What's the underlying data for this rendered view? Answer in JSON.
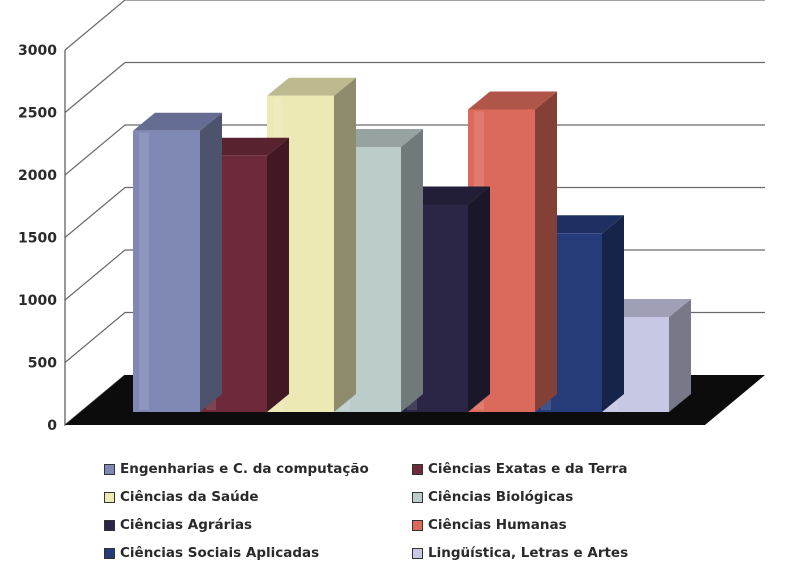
{
  "chart_data": {
    "type": "bar",
    "three_d": true,
    "title": "",
    "xlabel": "",
    "ylabel": "",
    "ylim": [
      0,
      3000
    ],
    "yticks": [
      0,
      500,
      1000,
      1500,
      2000,
      2500,
      3000
    ],
    "ytick_labels": [
      "0",
      "500",
      "1000",
      "1500",
      "2000",
      "2500",
      "3000"
    ],
    "grid": true,
    "legend_position": "bottom",
    "series": [
      {
        "name": "Engenharias e C. da computação",
        "value": 2250,
        "color": "#8088b6"
      },
      {
        "name": "Ciências Exatas e da Terra",
        "value": 2050,
        "color": "#6e2a3a"
      },
      {
        "name": "Ciências da Saúde",
        "value": 2530,
        "color": "#ece9b4"
      },
      {
        "name": "Ciências Biológicas",
        "value": 2120,
        "color": "#bccccb"
      },
      {
        "name": "Ciências Agrárias",
        "value": 1660,
        "color": "#2c2646"
      },
      {
        "name": "Ciências Humanas",
        "value": 2420,
        "color": "#dc6a5c"
      },
      {
        "name": "Ciências Sociais Aplicadas",
        "value": 1430,
        "color": "#263c7a"
      },
      {
        "name": "Lingüística, Letras e Artes",
        "value": 760,
        "color": "#c7c8e3"
      }
    ]
  }
}
